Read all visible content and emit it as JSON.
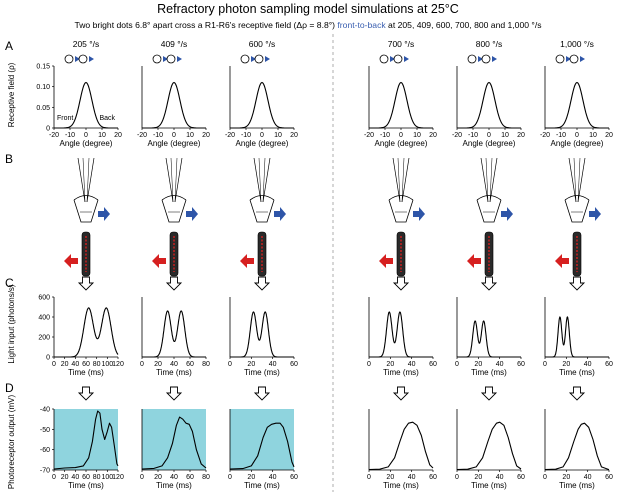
{
  "title": "Refractory photon sampling model simulations at 25°C",
  "subtitle": {
    "part1": "Two bright dots 6.8° apart cross a R1-R6's receptive field (Δρ = 8.8°) ",
    "highlight": "front-to-back",
    "part2": " at 205, 409, 600, 700, 800 and 1,000 °/s"
  },
  "panel_letters": [
    "A",
    "B",
    "C",
    "D"
  ],
  "speed_labels": [
    "205 °/s",
    "409 °/s",
    "600 °/s",
    "700 °/s",
    "800 °/s",
    "1,000 °/s"
  ],
  "colors": {
    "highlight": "#3a5fb0",
    "arrow_blue": "#2e55a8",
    "arrow_red": "#d62020",
    "panel_d_bg": "#8fd4de",
    "divider": "#9a9a9a"
  },
  "icons": [
    "two-dots-motion-icon",
    "photoreceptor-lens-icon",
    "rhabdomere-icon",
    "down-arrow-icon"
  ],
  "chart_data": [
    {
      "type": "line",
      "panel": "A",
      "ylabel": "Receptive field (ρ)",
      "xlabel": "Angle (degree)",
      "xlim": [
        -20,
        20
      ],
      "ylim": [
        0,
        0.15
      ],
      "xticks": [
        "-20",
        "-10",
        "0",
        "10",
        "20"
      ],
      "yticks": [
        "0",
        "0.05",
        "0.10",
        "0.15"
      ],
      "annotations": [
        "Front",
        "Back"
      ],
      "series": [
        {
          "sigma_deg": 3.74,
          "peak": 0.11
        }
      ]
    },
    {
      "type": "line",
      "panel": "C",
      "ylabel": "Light input (photons/s)",
      "xlabel": "Time (ms)",
      "ylim": [
        0,
        600
      ],
      "yticks": [
        "0",
        "200",
        "400",
        "600"
      ],
      "subplots": [
        {
          "speed": "205 °/s",
          "xlim": [
            0,
            120
          ],
          "xticks": [
            "0",
            "20",
            "40",
            "60",
            "80",
            "100",
            "120"
          ],
          "peaks_ms": [
            65,
            98
          ],
          "peak": 490,
          "width_ms": 9.0
        },
        {
          "speed": "409 °/s",
          "xlim": [
            0,
            80
          ],
          "xticks": [
            "0",
            "20",
            "40",
            "60",
            "80"
          ],
          "peaks_ms": [
            32,
            49
          ],
          "peak": 460,
          "width_ms": 4.5
        },
        {
          "speed": "600 °/s",
          "xlim": [
            0,
            60
          ],
          "xticks": [
            "0",
            "20",
            "40",
            "60"
          ],
          "peaks_ms": [
            22,
            33
          ],
          "peak": 450,
          "width_ms": 3.0
        },
        {
          "speed": "700 °/s",
          "xlim": [
            0,
            60
          ],
          "xticks": [
            "0",
            "20",
            "40",
            "60"
          ],
          "peaks_ms": [
            19,
            29
          ],
          "peak": 450,
          "width_ms": 2.6
        },
        {
          "speed": "800 °/s",
          "xlim": [
            0,
            60
          ],
          "xticks": [
            "0",
            "20",
            "40",
            "60"
          ],
          "peaks_ms": [
            17,
            25
          ],
          "peak": 360,
          "width_ms": 2.2
        },
        {
          "speed": "1,000 °/s",
          "xlim": [
            0,
            60
          ],
          "xticks": [
            "0",
            "20",
            "40",
            "60"
          ],
          "peaks_ms": [
            14,
            21
          ],
          "peak": 400,
          "width_ms": 1.8
        }
      ]
    },
    {
      "type": "line",
      "panel": "D",
      "ylabel": "Photoreceptor output (mV)",
      "xlabel": "Time (ms)",
      "ylim": [
        -70,
        -40
      ],
      "yticks": [
        "-40",
        "-50",
        "-60",
        "-70"
      ],
      "subplots": [
        {
          "speed": "205 °/s",
          "xlim": [
            0,
            120
          ],
          "xticks": [
            "0",
            "20",
            "40",
            "60",
            "80",
            "100",
            "120"
          ],
          "shaded": true,
          "points": [
            [
              0,
              -69.5
            ],
            [
              20,
              -69
            ],
            [
              40,
              -68.8
            ],
            [
              55,
              -68
            ],
            [
              65,
              -64
            ],
            [
              72,
              -56
            ],
            [
              78,
              -45
            ],
            [
              82,
              -41
            ],
            [
              86,
              -42
            ],
            [
              90,
              -50
            ],
            [
              95,
              -55
            ],
            [
              100,
              -51
            ],
            [
              104,
              -47
            ],
            [
              108,
              -49
            ],
            [
              113,
              -58
            ],
            [
              118,
              -67
            ],
            [
              120,
              -68
            ]
          ]
        },
        {
          "speed": "409 °/s",
          "xlim": [
            0,
            80
          ],
          "xticks": [
            "0",
            "20",
            "40",
            "60",
            "80"
          ],
          "shaded": true,
          "points": [
            [
              0,
              -69.5
            ],
            [
              15,
              -69.2
            ],
            [
              25,
              -68
            ],
            [
              32,
              -64
            ],
            [
              38,
              -57
            ],
            [
              43,
              -48
            ],
            [
              47,
              -44
            ],
            [
              51,
              -45
            ],
            [
              55,
              -47
            ],
            [
              59,
              -47.5
            ],
            [
              63,
              -51
            ],
            [
              68,
              -60
            ],
            [
              74,
              -67
            ],
            [
              80,
              -69
            ]
          ]
        },
        {
          "speed": "600 °/s",
          "xlim": [
            0,
            60
          ],
          "xticks": [
            "0",
            "20",
            "40",
            "60"
          ],
          "shaded": true,
          "points": [
            [
              0,
              -69.5
            ],
            [
              12,
              -69.3
            ],
            [
              20,
              -68
            ],
            [
              26,
              -63
            ],
            [
              31,
              -54
            ],
            [
              35,
              -49
            ],
            [
              39,
              -47.5
            ],
            [
              43,
              -47
            ],
            [
              47,
              -47
            ],
            [
              50,
              -49
            ],
            [
              54,
              -56
            ],
            [
              58,
              -66
            ],
            [
              60,
              -68.5
            ]
          ]
        },
        {
          "speed": "700 °/s",
          "xlim": [
            0,
            60
          ],
          "xticks": [
            "0",
            "20",
            "40",
            "60"
          ],
          "shaded": false,
          "points": [
            [
              0,
              -69.8
            ],
            [
              10,
              -69.6
            ],
            [
              18,
              -68.5
            ],
            [
              24,
              -64
            ],
            [
              29,
              -56
            ],
            [
              33,
              -50
            ],
            [
              37,
              -47
            ],
            [
              41,
              -46.5
            ],
            [
              45,
              -48
            ],
            [
              49,
              -53
            ],
            [
              53,
              -61
            ],
            [
              57,
              -67.5
            ],
            [
              60,
              -69
            ]
          ]
        },
        {
          "speed": "800 °/s",
          "xlim": [
            0,
            60
          ],
          "xticks": [
            "0",
            "20",
            "40",
            "60"
          ],
          "shaded": false,
          "points": [
            [
              0,
              -69.8
            ],
            [
              10,
              -69.6
            ],
            [
              18,
              -68.5
            ],
            [
              24,
              -64
            ],
            [
              29,
              -56
            ],
            [
              33,
              -50
            ],
            [
              37,
              -47
            ],
            [
              40,
              -46.5
            ],
            [
              44,
              -48
            ],
            [
              48,
              -54
            ],
            [
              52,
              -62
            ],
            [
              56,
              -68
            ],
            [
              60,
              -69.5
            ]
          ]
        },
        {
          "speed": "1,000 °/s",
          "xlim": [
            0,
            60
          ],
          "xticks": [
            "0",
            "20",
            "40",
            "60"
          ],
          "shaded": false,
          "points": [
            [
              0,
              -69.8
            ],
            [
              10,
              -69.6
            ],
            [
              17,
              -68.5
            ],
            [
              22,
              -64
            ],
            [
              27,
              -56
            ],
            [
              31,
              -50
            ],
            [
              34,
              -47.5
            ],
            [
              37,
              -47
            ],
            [
              41,
              -49
            ],
            [
              45,
              -55
            ],
            [
              49,
              -63
            ],
            [
              53,
              -68.5
            ],
            [
              60,
              -69.8
            ]
          ]
        }
      ]
    }
  ]
}
